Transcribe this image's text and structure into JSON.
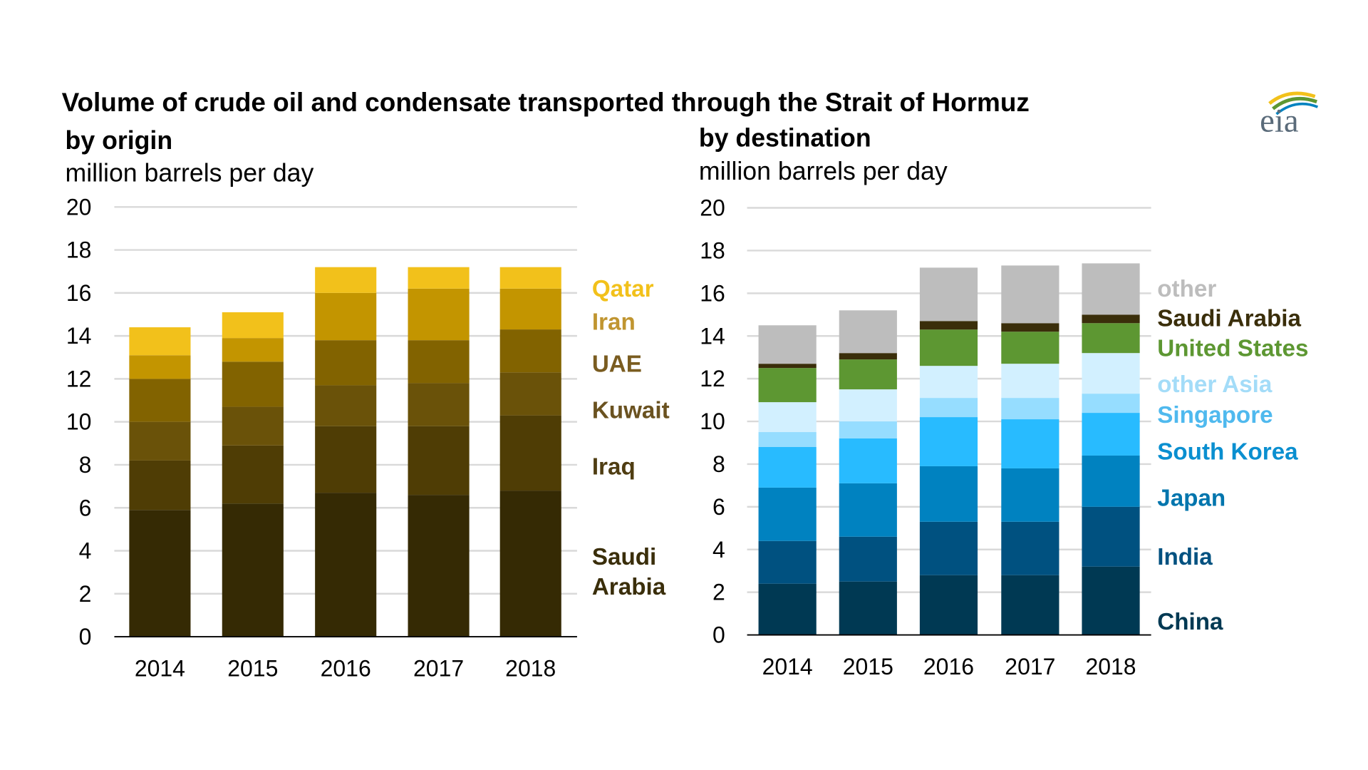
{
  "title": "Volume of crude oil and condensate transported through the Strait of Hormuz",
  "logo_text": "eia",
  "chart_data": [
    {
      "type": "bar",
      "stacked": true,
      "subtitle": "by origin",
      "ylabel": "million barrels per day",
      "ylim": [
        0,
        20
      ],
      "yticks": [
        "0",
        "2",
        "4",
        "6",
        "8",
        "10",
        "12",
        "14",
        "16",
        "18",
        "20"
      ],
      "categories": [
        "2014",
        "2015",
        "2016",
        "2017",
        "2018"
      ],
      "grid": true,
      "legend": "right, direct labels",
      "series": [
        {
          "name": "Saudi Arabia",
          "label_lines": [
            "Saudi",
            "Arabia"
          ],
          "color": "#352a04",
          "label_color": "#3a2e0a",
          "values": [
            5.9,
            6.2,
            6.7,
            6.6,
            6.8
          ]
        },
        {
          "name": "Iraq",
          "color": "#4f3d05",
          "label_color": "#4f3d12",
          "values": [
            2.3,
            2.7,
            3.1,
            3.2,
            3.5
          ]
        },
        {
          "name": "Kuwait",
          "color": "#6a5209",
          "label_color": "#6a5220",
          "values": [
            1.8,
            1.8,
            1.9,
            2.0,
            2.0
          ]
        },
        {
          "name": "UAE",
          "color": "#826300",
          "label_color": "#7a5c20",
          "values": [
            2.0,
            2.1,
            2.1,
            2.0,
            2.0
          ]
        },
        {
          "name": "Iran",
          "color": "#c39500",
          "label_color": "#c09530",
          "values": [
            1.1,
            1.1,
            2.2,
            2.4,
            1.9
          ]
        },
        {
          "name": "Qatar",
          "color": "#f2c11b",
          "label_color": "#f2c11b",
          "values": [
            1.3,
            1.2,
            1.2,
            1.0,
            1.0
          ]
        }
      ]
    },
    {
      "type": "bar",
      "stacked": true,
      "subtitle": "by destination",
      "ylabel": "million barrels per day",
      "ylim": [
        0,
        20
      ],
      "yticks": [
        "0",
        "2",
        "4",
        "6",
        "8",
        "10",
        "12",
        "14",
        "16",
        "18",
        "20"
      ],
      "categories": [
        "2014",
        "2015",
        "2016",
        "2017",
        "2018"
      ],
      "grid": true,
      "legend": "right, direct labels",
      "series": [
        {
          "name": "China",
          "color": "#003953",
          "label_color": "#003953",
          "values": [
            2.4,
            2.5,
            2.8,
            2.8,
            3.2
          ]
        },
        {
          "name": "India",
          "color": "#005180",
          "label_color": "#005180",
          "values": [
            2.0,
            2.1,
            2.5,
            2.5,
            2.8
          ]
        },
        {
          "name": "Japan",
          "color": "#0082c0",
          "label_color": "#0075ad",
          "values": [
            2.5,
            2.5,
            2.6,
            2.5,
            2.4
          ]
        },
        {
          "name": "South Korea",
          "color": "#28bbff",
          "label_color": "#0a8fd0",
          "values": [
            1.9,
            2.1,
            2.3,
            2.3,
            2.0
          ]
        },
        {
          "name": "Singapore",
          "color": "#96ddff",
          "label_color": "#4fb9ee",
          "values": [
            0.7,
            0.8,
            0.9,
            1.0,
            0.9
          ]
        },
        {
          "name": "other Asia",
          "color": "#d2f0ff",
          "label_color": "#a3dcf8",
          "values": [
            1.4,
            1.5,
            1.5,
            1.6,
            1.9
          ]
        },
        {
          "name": "United States",
          "color": "#5d9732",
          "label_color": "#5d9732",
          "values": [
            1.6,
            1.4,
            1.7,
            1.5,
            1.4
          ]
        },
        {
          "name": "Saudi Arabia",
          "color": "#3a2e0a",
          "label_color": "#3a2e0a",
          "values": [
            0.2,
            0.3,
            0.4,
            0.4,
            0.4
          ]
        },
        {
          "name": "other",
          "color": "#bdbdbd",
          "label_color": "#bdbdbd",
          "values": [
            1.8,
            2.0,
            2.5,
            2.7,
            2.4
          ]
        }
      ]
    }
  ]
}
